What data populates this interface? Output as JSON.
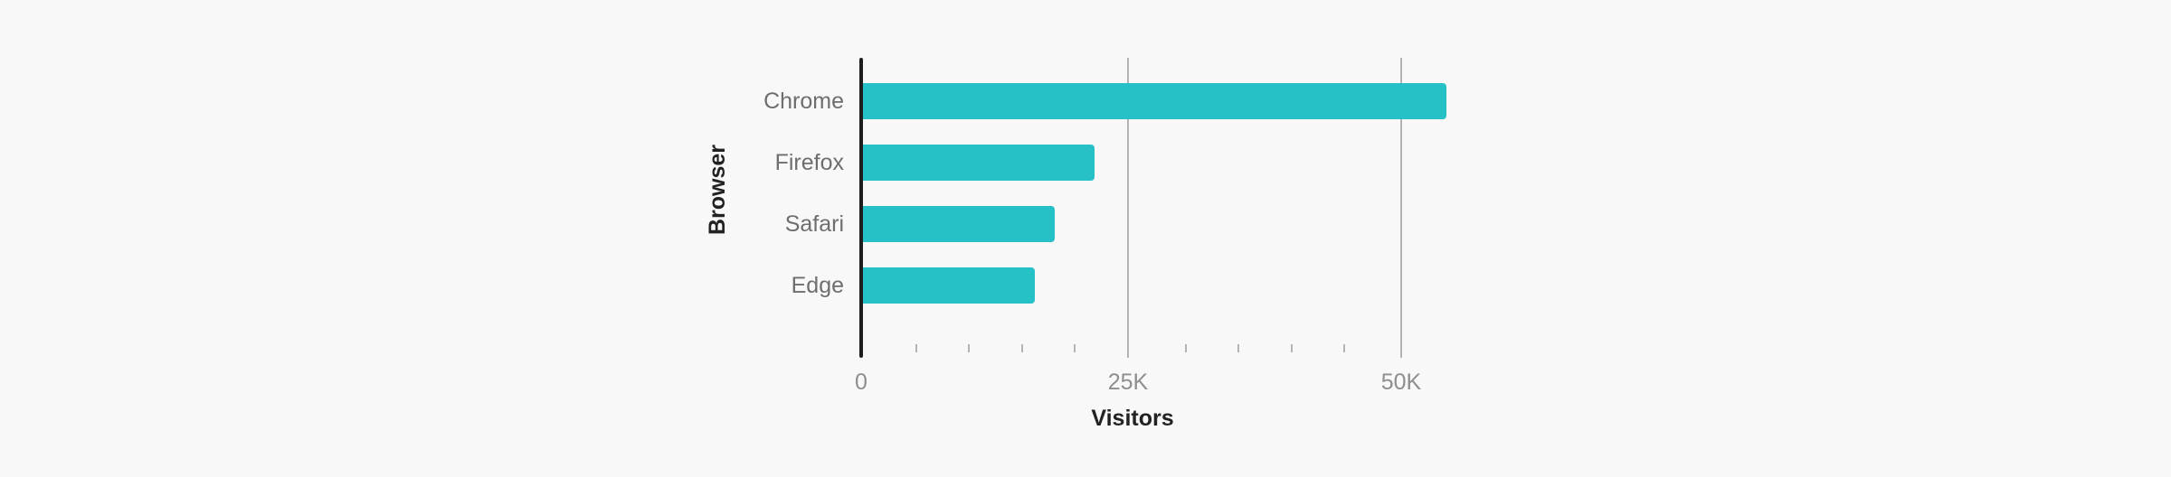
{
  "chart_data": {
    "type": "bar",
    "orientation": "horizontal",
    "categories": [
      "Chrome",
      "Firefox",
      "Safari",
      "Edge"
    ],
    "values": [
      54100,
      21500,
      17800,
      16000
    ],
    "title": "",
    "xlabel": "Visitors",
    "ylabel": "Browser",
    "xlim": [
      0,
      55000
    ],
    "x_ticks": [
      0,
      25000,
      50000
    ],
    "x_tick_labels": [
      "0",
      "25K",
      "50K"
    ],
    "minor_tick_interval": 5000,
    "grid": true,
    "legend": "none",
    "bar_color": "#26c0c7"
  },
  "labels": {
    "categories": [
      "Chrome",
      "Firefox",
      "Safari",
      "Edge"
    ],
    "x_ticks": [
      "0",
      "25K",
      "50K"
    ],
    "x_title": "Visitors",
    "y_title": "Browser"
  }
}
